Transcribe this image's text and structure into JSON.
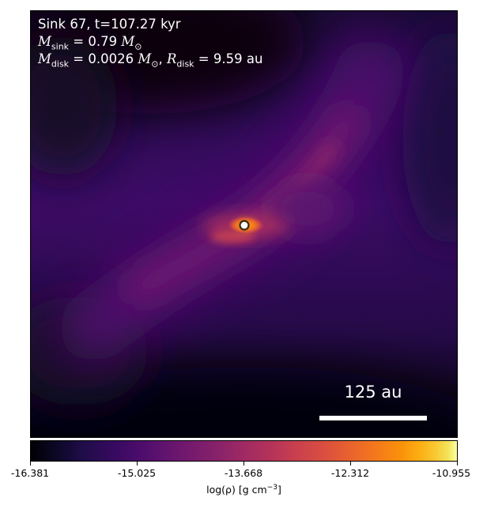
{
  "info": {
    "line1": "Sink 67, t=107.27 kyr",
    "m_sink_symbol": "M",
    "m_sink_sub": "sink",
    "m_sink_value": " = 0.79 ",
    "m_sink_unit": "M",
    "m_sink_unit_sub": "⊙",
    "m_disk_symbol": "M",
    "m_disk_sub": "disk",
    "m_disk_value": " = 0.0026 ",
    "m_disk_unit": "M",
    "m_disk_unit_sub": "⊙",
    "separator": ", ",
    "r_disk_symbol": "R",
    "r_disk_sub": "disk",
    "r_disk_value": " = 9.59 au"
  },
  "scalebar": {
    "label": "125 au",
    "color": "#ffffff"
  },
  "colorbar": {
    "colormap": "inferno",
    "ticks": [
      "-16.381",
      "-15.025",
      "-13.668",
      "-12.312",
      "-10.955"
    ],
    "label_prefix": "log(ρ) [g cm",
    "label_exponent": "−3",
    "label_suffix": "]"
  },
  "sink_marker": {
    "fill_color": "#ffffff",
    "edge_color": "#3a2a10"
  },
  "colors": {
    "background_dark": "#07040f",
    "filament": "#5a1070",
    "core": "#f57d15"
  }
}
